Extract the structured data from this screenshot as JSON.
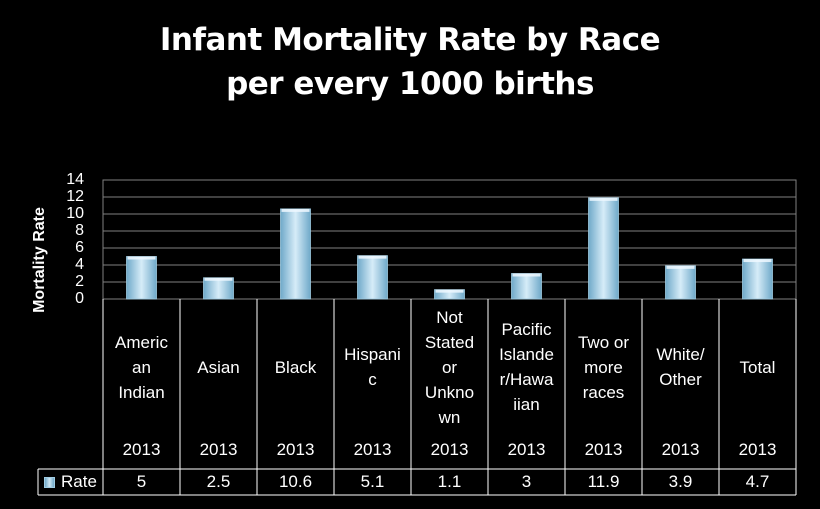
{
  "title_line1": "Infant Mortality Rate by Race",
  "title_line2": "per every 1000 births",
  "colors": {
    "background": "#000000",
    "bar_light": "#d6ecf8",
    "bar_dark": "#6fa9c9",
    "grid": "#808080"
  },
  "chart_data": {
    "type": "bar",
    "ylabel": "Mortality Rate",
    "ylim": [
      0,
      14
    ],
    "yticks": [
      "0",
      "2",
      "4",
      "6",
      "8",
      "10",
      "12",
      "14"
    ],
    "grid": true,
    "categories": [
      "Americ\nan\nIndian",
      "Asian",
      "Black",
      "Hispani\nc",
      "Not\nStated\nor\nUnkno\nwn",
      "Pacific\nIslande\nr/Hawa\niian",
      "Two or\nmore\nraces",
      "White/\nOther",
      "Total"
    ],
    "years": [
      "2013",
      "2013",
      "2013",
      "2013",
      "2013",
      "2013",
      "2013",
      "2013",
      "2013"
    ],
    "series": [
      {
        "name": "Rate",
        "values": [
          5,
          2.5,
          10.6,
          5.1,
          1.1,
          3,
          11.9,
          3.9,
          4.7
        ],
        "labels": [
          "5",
          "2.5",
          "10.6",
          "5.1",
          "1.1",
          "3",
          "11.9",
          "3.9",
          "4.7"
        ]
      }
    ],
    "legend": "table-left"
  }
}
